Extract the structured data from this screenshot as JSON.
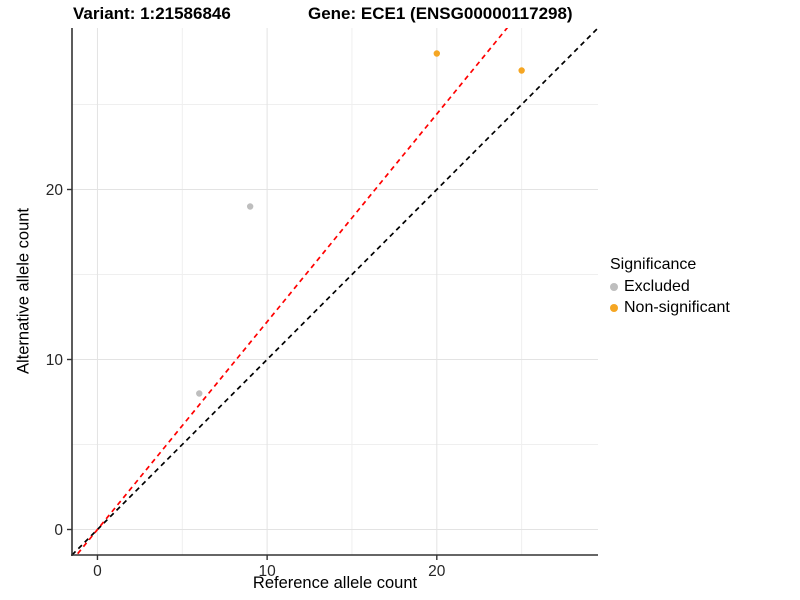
{
  "chart_data": {
    "type": "scatter",
    "title_left": "Variant: 1:21586846",
    "title_right": "Gene: ECE1 (ENSG00000117298)",
    "xlabel": "Reference allele count",
    "ylabel": "Alternative allele count",
    "xlim": [
      -1.5,
      29.5
    ],
    "ylim": [
      -1.5,
      29.5
    ],
    "x_ticks": {
      "major": [
        0,
        10,
        20
      ],
      "minor": [
        5,
        15,
        25
      ]
    },
    "y_ticks": {
      "major": [
        0,
        10,
        20
      ],
      "minor": [
        5,
        15,
        25
      ]
    },
    "grid": {
      "on": true,
      "major_color": "#E3E3E3",
      "minor_color": "#EFEFEF"
    },
    "series": [
      {
        "name": "Excluded",
        "color": "#BEBEBE",
        "points": [
          [
            6,
            8
          ],
          [
            9,
            19
          ]
        ]
      },
      {
        "name": "Non-significant",
        "color": "#F5A623",
        "points": [
          [
            20,
            28
          ],
          [
            25,
            27
          ]
        ]
      }
    ],
    "lines": [
      {
        "name": "identity-line",
        "color": "#000000",
        "slope": 1,
        "intercept": 0,
        "dashed": true
      },
      {
        "name": "ratio-line",
        "color": "#FF0000",
        "slope": 1.222,
        "intercept": 0,
        "dashed": true
      }
    ],
    "legend": {
      "title": "Significance",
      "position": "right",
      "items": [
        {
          "label": "Excluded",
          "color": "#BEBEBE"
        },
        {
          "label": "Non-significant",
          "color": "#F5A623"
        }
      ]
    },
    "colors": {
      "axis": "#333333",
      "tick_label": "#262626"
    }
  }
}
